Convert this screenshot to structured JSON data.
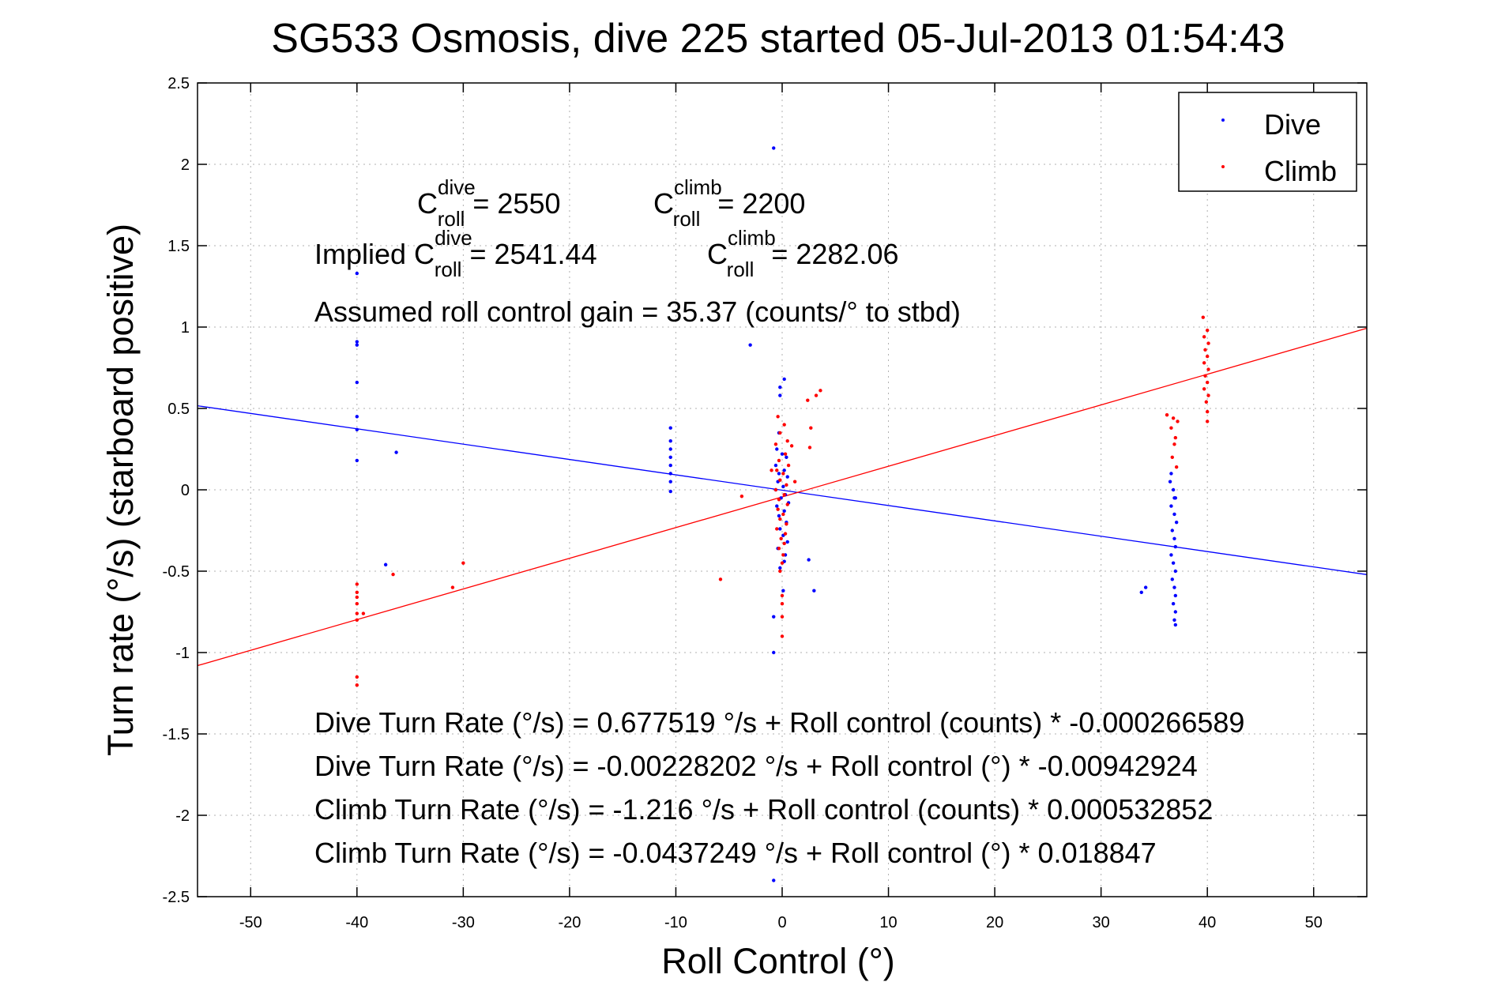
{
  "colors": {
    "dive": "#0000ff",
    "climb": "#ff0000",
    "axes": "#000000",
    "grid": "#b0b0b0"
  },
  "chart_data": {
    "type": "scatter",
    "title": "SG533 Osmosis, dive 225 started 05-Jul-2013 01:54:43",
    "xlabel": "Roll Control (°)",
    "ylabel": "Turn rate (°/s) (starboard positive)",
    "xlim": [
      -55,
      55
    ],
    "ylim": [
      -2.5,
      2.5
    ],
    "xticks": [
      -50,
      -40,
      -30,
      -20,
      -10,
      0,
      10,
      20,
      30,
      40,
      50
    ],
    "yticks": [
      2.5,
      2,
      1.5,
      1,
      0.5,
      0,
      -0.5,
      -1,
      -1.5,
      -2,
      -2.5
    ],
    "xtick_labels": [
      "-50",
      "-40",
      "-30",
      "-20",
      "-10",
      "0",
      "10",
      "20",
      "30",
      "40",
      "50"
    ],
    "ytick_labels": [
      "2.5",
      "2",
      "1.5",
      "1",
      "0.5",
      "0",
      "-0.5",
      "-1",
      "-1.5",
      "-2",
      "-2.5"
    ],
    "grid": true,
    "legend": {
      "position": "top-right",
      "entries": [
        "Dive",
        "Climb"
      ]
    },
    "series": [
      {
        "name": "Dive",
        "color": "#0000ff",
        "points": [
          [
            -40,
            1.33
          ],
          [
            -40,
            0.91
          ],
          [
            -40,
            0.89
          ],
          [
            -40,
            0.66
          ],
          [
            -40,
            0.45
          ],
          [
            -40,
            0.37
          ],
          [
            -40,
            0.18
          ],
          [
            -36.3,
            0.23
          ],
          [
            -37.3,
            -0.46
          ],
          [
            -10.5,
            0.38
          ],
          [
            -10.5,
            0.3
          ],
          [
            -10.5,
            0.25
          ],
          [
            -10.5,
            0.2
          ],
          [
            -10.5,
            0.15
          ],
          [
            -10.5,
            0.1
          ],
          [
            -10.5,
            0.05
          ],
          [
            -10.5,
            -0.01
          ],
          [
            -3,
            0.89
          ],
          [
            -0.8,
            2.1
          ],
          [
            -0.8,
            -0.78
          ],
          [
            -0.8,
            -1.0
          ],
          [
            -0.8,
            -2.4
          ],
          [
            -0.2,
            0.63
          ],
          [
            -0.2,
            0.58
          ],
          [
            -0.3,
            0.35
          ],
          [
            -0.5,
            0.25
          ],
          [
            0,
            0.22
          ],
          [
            0.4,
            0.2
          ],
          [
            -0.6,
            0.15
          ],
          [
            0.2,
            0.12
          ],
          [
            -0.3,
            0.1
          ],
          [
            0.5,
            0.08
          ],
          [
            -0.4,
            0.05
          ],
          [
            0.1,
            0.02
          ],
          [
            -0.6,
            0.0
          ],
          [
            0.3,
            -0.03
          ],
          [
            -0.1,
            -0.05
          ],
          [
            0.6,
            -0.08
          ],
          [
            -0.5,
            -0.1
          ],
          [
            0.2,
            -0.13
          ],
          [
            -0.3,
            -0.16
          ],
          [
            0.4,
            -0.2
          ],
          [
            -0.2,
            -0.24
          ],
          [
            0.1,
            -0.28
          ],
          [
            0.5,
            -0.32
          ],
          [
            -0.4,
            -0.36
          ],
          [
            0.3,
            -0.4
          ],
          [
            0.2,
            -0.44
          ],
          [
            -0.2,
            -0.48
          ],
          [
            0.1,
            -0.62
          ],
          [
            0.2,
            0.68
          ],
          [
            2.5,
            -0.43
          ],
          [
            3.0,
            -0.62
          ],
          [
            33.8,
            -0.63
          ],
          [
            34.2,
            -0.6
          ],
          [
            36.5,
            0.05
          ],
          [
            36.8,
            0.0
          ],
          [
            37.0,
            -0.05
          ],
          [
            36.6,
            -0.1
          ],
          [
            36.9,
            -0.15
          ],
          [
            37.1,
            -0.2
          ],
          [
            36.7,
            -0.25
          ],
          [
            36.9,
            -0.3
          ],
          [
            37.0,
            -0.35
          ],
          [
            36.6,
            -0.4
          ],
          [
            36.8,
            -0.45
          ],
          [
            37.0,
            -0.5
          ],
          [
            36.7,
            -0.55
          ],
          [
            36.9,
            -0.6
          ],
          [
            37.0,
            -0.65
          ],
          [
            36.8,
            -0.7
          ],
          [
            37.0,
            -0.75
          ],
          [
            36.9,
            -0.8
          ],
          [
            37.0,
            -0.83
          ],
          [
            36.6,
            0.1
          ],
          [
            36.9,
            -0.05
          ]
        ]
      },
      {
        "name": "Climb",
        "color": "#ff0000",
        "points": [
          [
            -40,
            -0.58
          ],
          [
            -40,
            -0.63
          ],
          [
            -40,
            -0.66
          ],
          [
            -40,
            -0.7
          ],
          [
            -40,
            -0.76
          ],
          [
            -40,
            -0.8
          ],
          [
            -40,
            -1.15
          ],
          [
            -40,
            -1.2
          ],
          [
            -39.4,
            -0.76
          ],
          [
            -36.6,
            -0.52
          ],
          [
            -31,
            -0.6
          ],
          [
            -30,
            -0.45
          ],
          [
            -5.8,
            -0.55
          ],
          [
            -3.8,
            -0.04
          ],
          [
            -0.4,
            0.45
          ],
          [
            0.2,
            0.4
          ],
          [
            -0.2,
            0.35
          ],
          [
            0.5,
            0.3
          ],
          [
            -0.6,
            0.28
          ],
          [
            0.3,
            0.22
          ],
          [
            -0.3,
            0.18
          ],
          [
            0.6,
            0.15
          ],
          [
            -0.5,
            0.12
          ],
          [
            0.1,
            0.1
          ],
          [
            -0.2,
            0.06
          ],
          [
            0.4,
            0.03
          ],
          [
            -0.6,
            0.0
          ],
          [
            0.2,
            -0.03
          ],
          [
            -0.3,
            -0.06
          ],
          [
            0.5,
            -0.09
          ],
          [
            -0.4,
            -0.12
          ],
          [
            0.1,
            -0.15
          ],
          [
            -0.2,
            -0.18
          ],
          [
            0.4,
            -0.21
          ],
          [
            -0.5,
            -0.24
          ],
          [
            0.3,
            -0.27
          ],
          [
            -0.1,
            -0.3
          ],
          [
            0.2,
            -0.33
          ],
          [
            -0.3,
            -0.36
          ],
          [
            0.1,
            -0.4
          ],
          [
            0.0,
            -0.45
          ],
          [
            -0.2,
            -0.5
          ],
          [
            0.0,
            -0.65
          ],
          [
            0.0,
            -0.7
          ],
          [
            0.0,
            -0.78
          ],
          [
            0.0,
            -0.9
          ],
          [
            0.9,
            0.27
          ],
          [
            1.2,
            0.05
          ],
          [
            -1.0,
            0.12
          ],
          [
            2.4,
            0.55
          ],
          [
            3.2,
            0.58
          ],
          [
            3.6,
            0.61
          ],
          [
            2.7,
            0.38
          ],
          [
            2.6,
            0.26
          ],
          [
            36.2,
            0.46
          ],
          [
            36.8,
            0.44
          ],
          [
            37.2,
            0.42
          ],
          [
            36.6,
            0.38
          ],
          [
            37.0,
            0.32
          ],
          [
            36.9,
            0.28
          ],
          [
            36.7,
            0.2
          ],
          [
            37.1,
            0.14
          ],
          [
            39.6,
            1.06
          ],
          [
            40.0,
            0.98
          ],
          [
            39.7,
            0.94
          ],
          [
            40.1,
            0.9
          ],
          [
            39.8,
            0.86
          ],
          [
            40.0,
            0.82
          ],
          [
            39.7,
            0.78
          ],
          [
            40.1,
            0.74
          ],
          [
            39.8,
            0.7
          ],
          [
            40.0,
            0.66
          ],
          [
            39.7,
            0.62
          ],
          [
            40.1,
            0.58
          ],
          [
            39.9,
            0.54
          ],
          [
            40.0,
            0.48
          ],
          [
            40.0,
            0.42
          ]
        ]
      }
    ],
    "fit_lines": [
      {
        "series": "Dive",
        "intercept": -0.00228202,
        "slope": -0.00942924,
        "color": "#0000ff"
      },
      {
        "series": "Climb",
        "intercept": -0.0437249,
        "slope": 0.018847,
        "color": "#ff0000"
      }
    ],
    "annotations": {
      "c_roll_line": {
        "c1_base": "C",
        "c1_sup": "dive",
        "c1_sub": "roll",
        "c1_value": "= 2550",
        "c2_base": "C",
        "c2_sup": "climb",
        "c2_sub": "roll",
        "c2_value": "= 2200"
      },
      "implied_line": {
        "prefix": "Implied C",
        "c1_sup": "dive",
        "c1_sub": "roll",
        "c1_value": "= 2541.44",
        "c2_base": "C",
        "c2_sup": "climb",
        "c2_sub": "roll",
        "c2_value": "= 2282.06"
      },
      "gain_line": "Assumed roll control gain = 35.37 (counts/° to stbd)",
      "equations": [
        "Dive Turn Rate (°/s) = 0.677519 °/s + Roll control (counts) * -0.000266589",
        "Dive Turn Rate (°/s) = -0.00228202 °/s + Roll control (°) * -0.00942924",
        "Climb Turn Rate (°/s) = -1.216 °/s + Roll control (counts) * 0.000532852",
        "Climb Turn Rate (°/s) = -0.0437249 °/s + Roll control (°) * 0.018847"
      ]
    }
  }
}
